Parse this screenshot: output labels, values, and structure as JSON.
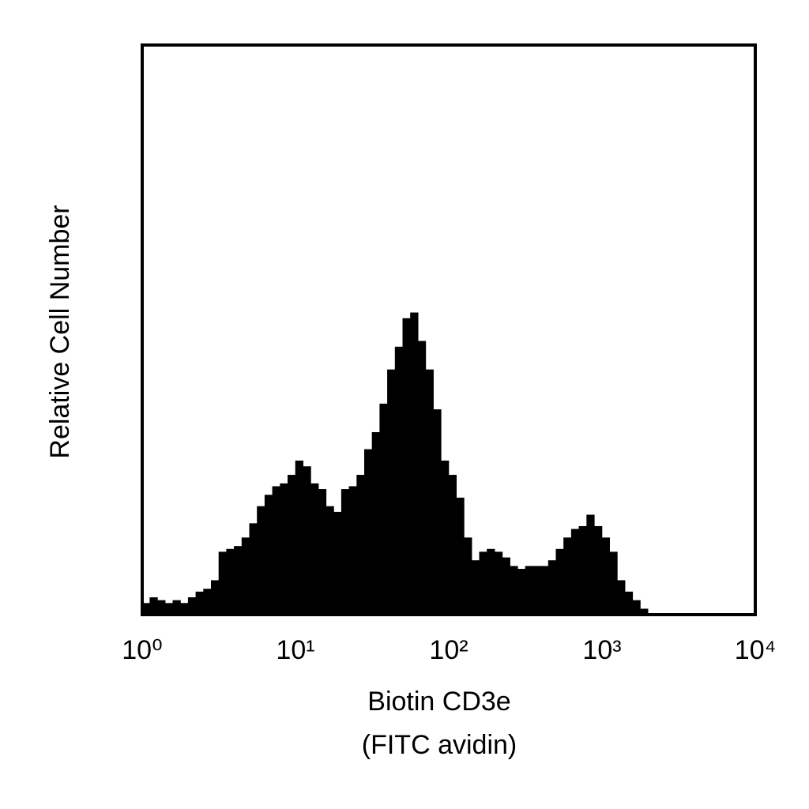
{
  "chart_data": {
    "type": "histogram",
    "xlabel": [
      "Biotin CD3e",
      "(FITC avidin)"
    ],
    "ylabel": "Relative Cell Number",
    "xscale": "log",
    "color": "#000000",
    "bins": [
      1,
      1.122,
      1.259,
      1.413,
      1.585,
      1.778,
      1.995,
      2.239,
      2.512,
      2.818,
      3.162,
      3.548,
      3.981,
      4.467,
      5.012,
      5.623,
      6.31,
      7.079,
      7.943,
      8.913,
      10,
      11.22,
      12.59,
      14.13,
      15.85,
      17.78,
      19.95,
      22.39,
      25.12,
      28.18,
      31.62,
      35.48,
      39.81,
      44.67,
      50.12,
      56.23,
      63.1,
      70.79,
      79.43,
      89.13,
      100,
      112.2,
      125.9,
      141.3,
      158.5,
      177.8,
      199.5,
      223.9,
      251.2,
      281.8,
      316.2,
      354.8,
      398.1,
      446.7,
      501.2,
      562.3,
      631,
      707.9,
      794.3,
      891.3,
      1000,
      1122,
      1259,
      1413,
      1585,
      1778,
      1995,
      2239,
      2512,
      2818,
      3162,
      3548,
      3981,
      4467,
      5012,
      5623,
      6310,
      7079,
      7943,
      8913,
      10000
    ],
    "values": [
      2,
      3,
      2.5,
      2,
      2.5,
      2,
      3,
      4,
      4.5,
      6,
      11,
      11.5,
      12,
      13.5,
      16,
      19,
      21,
      22.5,
      23,
      24.5,
      27,
      26,
      23,
      22,
      19,
      18,
      22,
      22.5,
      24.5,
      29,
      32,
      37,
      43,
      47,
      52,
      53,
      48,
      43,
      36,
      27,
      24.5,
      20.5,
      13.5,
      9.5,
      11,
      11.5,
      11,
      10,
      8.5,
      8,
      8.5,
      8.5,
      8.5,
      9.5,
      11.5,
      13.5,
      15,
      15.5,
      17.5,
      15.5,
      13.5,
      11,
      6,
      4,
      2.5,
      1,
      0,
      0,
      0,
      0,
      0,
      0,
      0,
      0,
      0,
      0,
      0,
      0,
      0,
      0
    ],
    "xlim": [
      1,
      10000
    ],
    "ylim": [
      0,
      100
    ],
    "xticks": [
      {
        "value": 1,
        "label": "10⁰"
      },
      {
        "value": 10,
        "label": "10¹"
      },
      {
        "value": 100,
        "label": "10²"
      },
      {
        "value": 1000,
        "label": "10³"
      },
      {
        "value": 10000,
        "label": "10⁴"
      }
    ]
  }
}
